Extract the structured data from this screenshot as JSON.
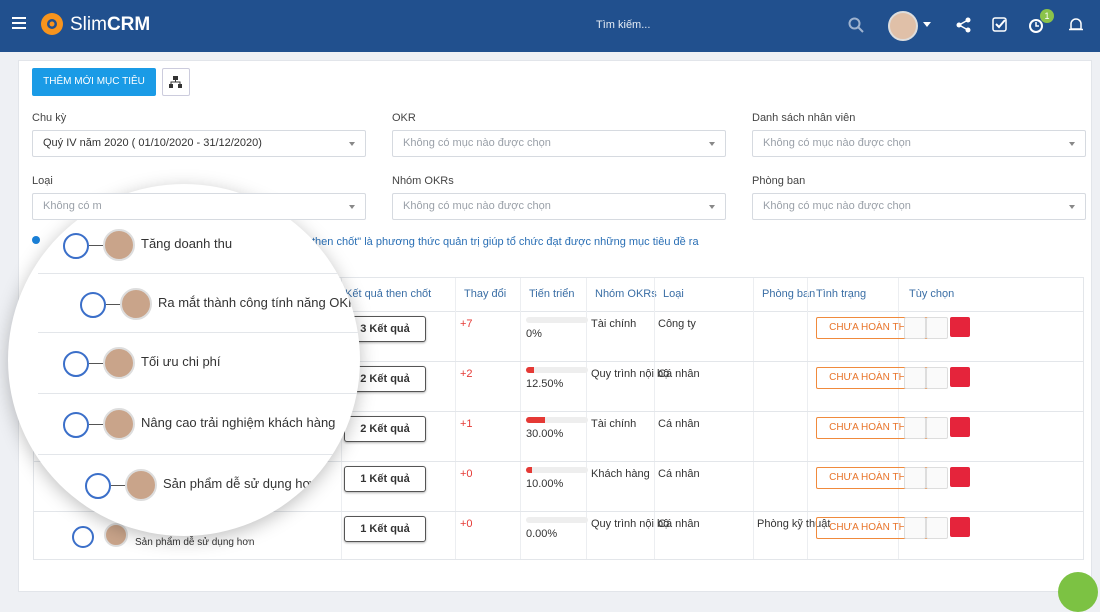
{
  "header": {
    "brand_light": "Slim",
    "brand_bold": "CRM",
    "search_placeholder": "Tìm kiếm...",
    "notification_badge": "1"
  },
  "toolbar": {
    "add_button": "THÊM MỚI MỤC TIÊU"
  },
  "filters": [
    {
      "label": "Chu kỳ",
      "value": "Quý IV năm 2020 ( 01/10/2020 - 31/12/2020)"
    },
    {
      "label": "OKR",
      "placeholder": "Không có mục nào được chọn"
    },
    {
      "label": "Danh sách nhân viên",
      "placeholder": "Không có mục nào được chọn"
    },
    {
      "label": "Loại",
      "placeholder": "Không có m"
    },
    {
      "label": "Nhóm OKRs",
      "placeholder": "Không có mục nào được chọn"
    },
    {
      "label": "Phòng ban",
      "placeholder": "Không có mục nào được chọn"
    }
  ],
  "info": "then chốt\" là phương thức quản trị giúp tổ chức đạt được những mục tiêu đề ra",
  "table": {
    "headers": [
      "Kết quả then chốt",
      "Thay đổi",
      "Tiến triển",
      "Nhóm OKRs",
      "Loại",
      "Phòng ban",
      "Tình trạng",
      "Tùy chọn"
    ],
    "rows": [
      {
        "results": "3 Kết quả",
        "change": "+7",
        "progress": {
          "value": 0,
          "label": "0%"
        },
        "group": "Tài chính",
        "type": "Công ty",
        "status": "CHƯA HOÀN THÀNH"
      },
      {
        "results": "2 Kết quả",
        "change": "+2",
        "progress": {
          "value": 12.5,
          "label": "12.50%"
        },
        "group": "Quy trình nội bộ",
        "type": "Cá nhân",
        "status": "CHƯA HOÀN THÀNH"
      },
      {
        "results": "2 Kết quả",
        "change": "+1",
        "progress": {
          "value": 30,
          "label": "30.00%"
        },
        "group": "Tài chính",
        "type": "Cá nhân",
        "status": "CHƯA HOÀN THÀNH"
      },
      {
        "results": "1 Kết quả",
        "change": "+0",
        "progress": {
          "value": 10,
          "label": "10.00%"
        },
        "group": "Khách hàng",
        "type": "Cá nhân",
        "status": "CHƯA HOÀN THÀNH"
      },
      {
        "name": "Sản phẩm dễ sử dụng hơn",
        "results": "1 Kết quả",
        "change": "+0",
        "progress": {
          "value": 0,
          "label": "0.00%"
        },
        "group": "Quy trình nội bộ",
        "type": "Cá nhân",
        "department": "Phòng kỹ thuật",
        "status": "CHƯA HOÀN THÀNH"
      }
    ]
  },
  "lens": {
    "items": [
      "Tăng doanh thu",
      "Ra mắt thành công tính năng OKR",
      "Tối ưu chi phí",
      "Nâng cao trải nghiệm khách hàng",
      "Sản phẩm dễ sử dụng hơn"
    ]
  }
}
